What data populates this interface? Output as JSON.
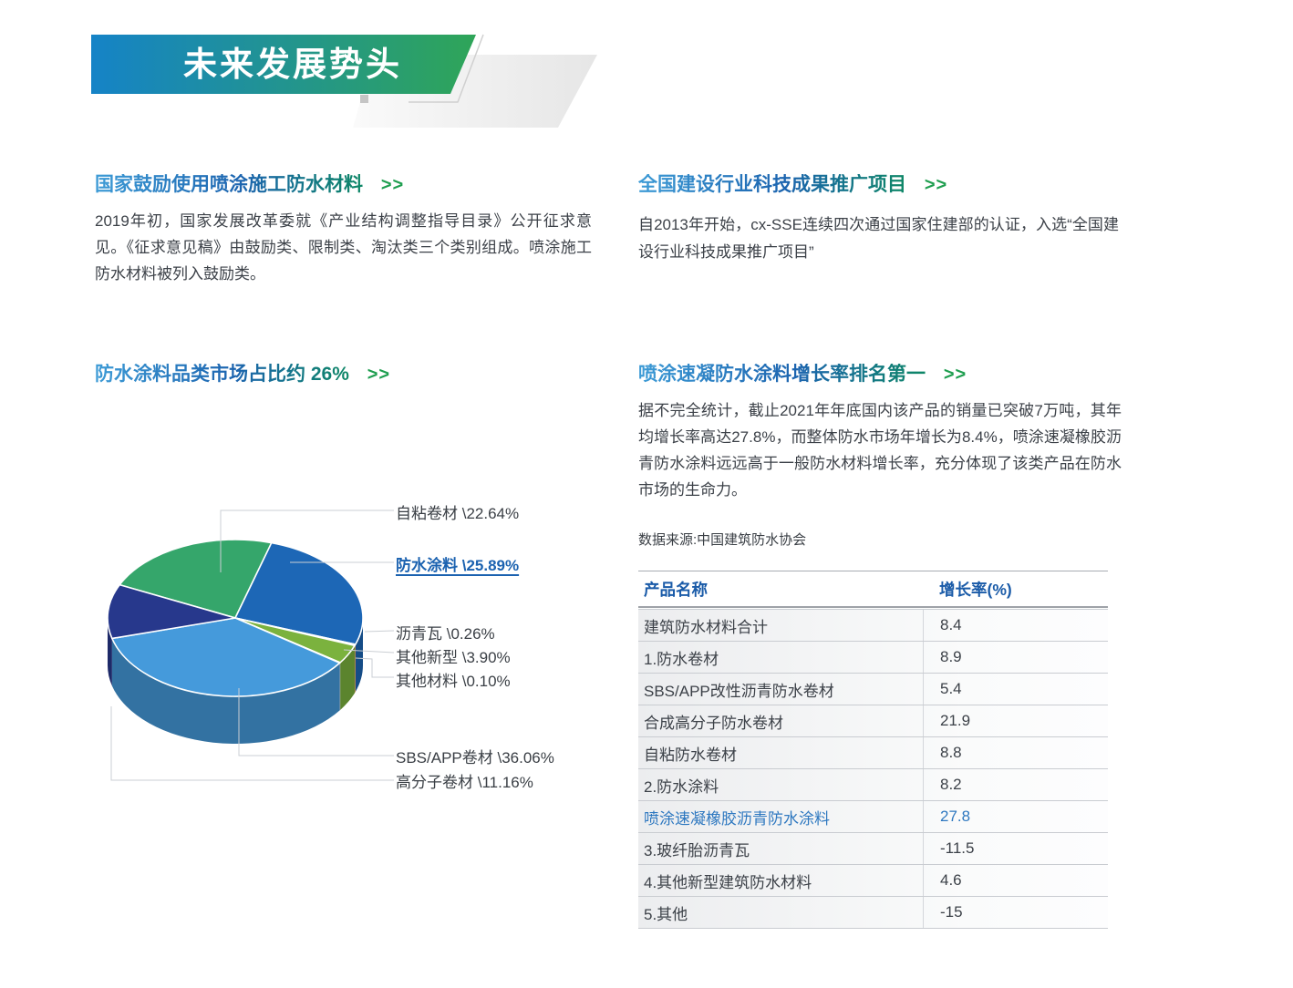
{
  "banner": {
    "title": "未来发展势头",
    "gradient_start": "#1583C7",
    "gradient_end": "#2FA558"
  },
  "sections": {
    "s1": {
      "heading": "国家鼓励使用喷涂施工防水材料",
      "arrow": ">>",
      "body": "2019年初，国家发展改革委就《产业结构调整指导目录》公开征求意见。《征求意见稿》由鼓励类、限制类、淘汰类三个类别组成。喷涂施工防水材料被列入鼓励类。"
    },
    "s2": {
      "heading": "全国建设行业科技成果推广项目",
      "arrow": ">>",
      "body": "自2013年开始，cx-SSE连续四次通过国家住建部的认证，入选“全国建设行业科技成果推广项目”"
    },
    "s3": {
      "heading": "防水涂料品类市场占比约 26%",
      "arrow": ">>"
    },
    "s4": {
      "heading": "喷涂速凝防水涂料增长率排名第一",
      "arrow": ">>",
      "body": "据不完全统计，截止2021年年底国内该产品的销量已突破7万吨，其年均增长率高达27.8%，而整体防水市场年增长为8.4%，喷涂速凝橡胶沥青防水涂料远远高于一般防水材料增长率，充分体现了该类产品在防水市场的生命力。",
      "source": "数据来源:中国建筑防水协会"
    }
  },
  "chart_data": {
    "type": "pie",
    "title": "防水涂料品类市场占比约 26%",
    "unit": "%",
    "style": "3d",
    "direction": "clockwise",
    "start_angle_deg": 155,
    "slices": [
      {
        "name": "自粘卷材",
        "value": 22.64,
        "label": "自粘卷材 \\22.64%",
        "color": "#35A66B"
      },
      {
        "name": "防水涂料",
        "value": 25.89,
        "label": "防水涂料 \\25.89%",
        "color": "#1D67B6",
        "emphasis": true
      },
      {
        "name": "沥青瓦",
        "value": 0.26,
        "label": "沥青瓦 \\0.26%",
        "color": "#F09E4B"
      },
      {
        "name": "其他新型",
        "value": 3.9,
        "label": "其他新型 \\3.90%",
        "color": "#7BB23E"
      },
      {
        "name": "其他材料",
        "value": 0.1,
        "label": "其他材料 \\0.10%",
        "color": "#C6CBD3"
      },
      {
        "name": "SBS/APP卷材",
        "value": 36.06,
        "label": "SBS/APP卷材 \\36.06%",
        "color": "#459ADB"
      },
      {
        "name": "高分子卷材",
        "value": 11.16,
        "label": "高分子卷材 \\11.16%",
        "color": "#27388C"
      }
    ]
  },
  "table": {
    "headers": [
      "产品名称",
      "增长率(%)"
    ],
    "rows": [
      {
        "name": "建筑防水材料合计",
        "value": "8.4"
      },
      {
        "name": "1.防水卷材",
        "value": "8.9"
      },
      {
        "name": "SBS/APP改性沥青防水卷材",
        "value": "5.4"
      },
      {
        "name": "合成高分子防水卷材",
        "value": "21.9"
      },
      {
        "name": "自粘防水卷材",
        "value": "8.8"
      },
      {
        "name": "2.防水涂料",
        "value": "8.2"
      },
      {
        "name": "喷涂速凝橡胶沥青防水涂料",
        "value": "27.8",
        "highlight": true
      },
      {
        "name": "3.玻纤胎沥青瓦",
        "value": "-11.5"
      },
      {
        "name": "4.其他新型建筑防水材料",
        "value": "4.6"
      },
      {
        "name": "5.其他",
        "value": "-15"
      }
    ]
  }
}
